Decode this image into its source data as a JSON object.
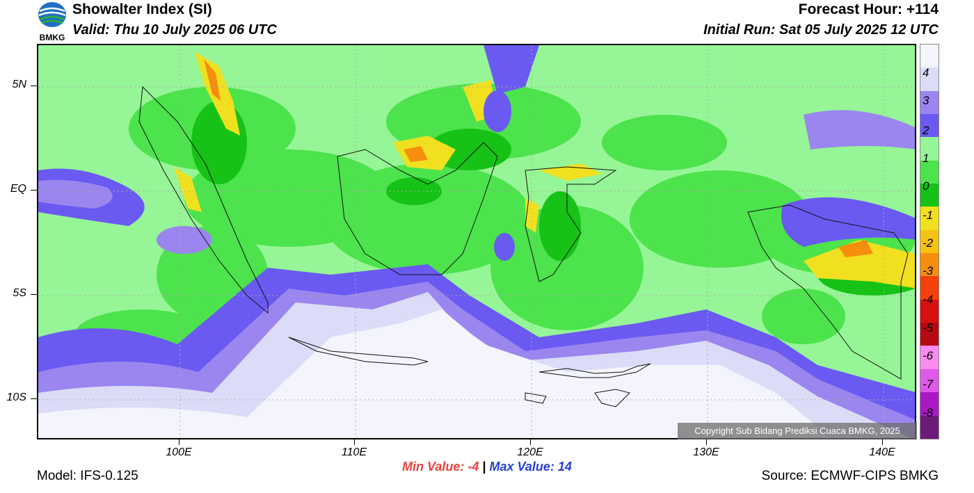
{
  "header": {
    "logo_text": "BMKG",
    "title": "Showalter Index (SI)",
    "valid": "Valid: Thu 10 July 2025 06 UTC",
    "forecast_hour": "Forecast Hour: +114",
    "initial_run": "Initial Run: Sat 05 July 2025 12 UTC"
  },
  "axes": {
    "lat_labels": [
      "5N",
      "EQ",
      "5S",
      "10S"
    ],
    "lon_labels": [
      "100E",
      "110E",
      "120E",
      "130E",
      "140E"
    ]
  },
  "colorbar": {
    "labels": [
      "4",
      "3",
      "2",
      "1",
      "0",
      "-1",
      "-2",
      "-3",
      "-4",
      "-5",
      "-6",
      "-7",
      "-8"
    ],
    "colors": [
      "#f4f4fc",
      "#dcdcf8",
      "#9a86ee",
      "#6a5af2",
      "#96f596",
      "#4ce34c",
      "#16c216",
      "#f0e020",
      "#f5c214",
      "#f58e0c",
      "#f4400a",
      "#d81010",
      "#b50a12",
      "#f88cf0",
      "#e058e8",
      "#a818c4",
      "#6c1c78"
    ]
  },
  "map": {
    "copyright": "Copyright Sub Bidang Prediksi Cuaca BMKG, 2025"
  },
  "stats": {
    "min_label": "Min Value:",
    "min_value": "-4",
    "separator": "|",
    "max_label": "Max Value:",
    "max_value": "14"
  },
  "footer": {
    "model": "Model: IFS-0.125",
    "source": "Source: ECMWF-CIPS BMKG"
  }
}
